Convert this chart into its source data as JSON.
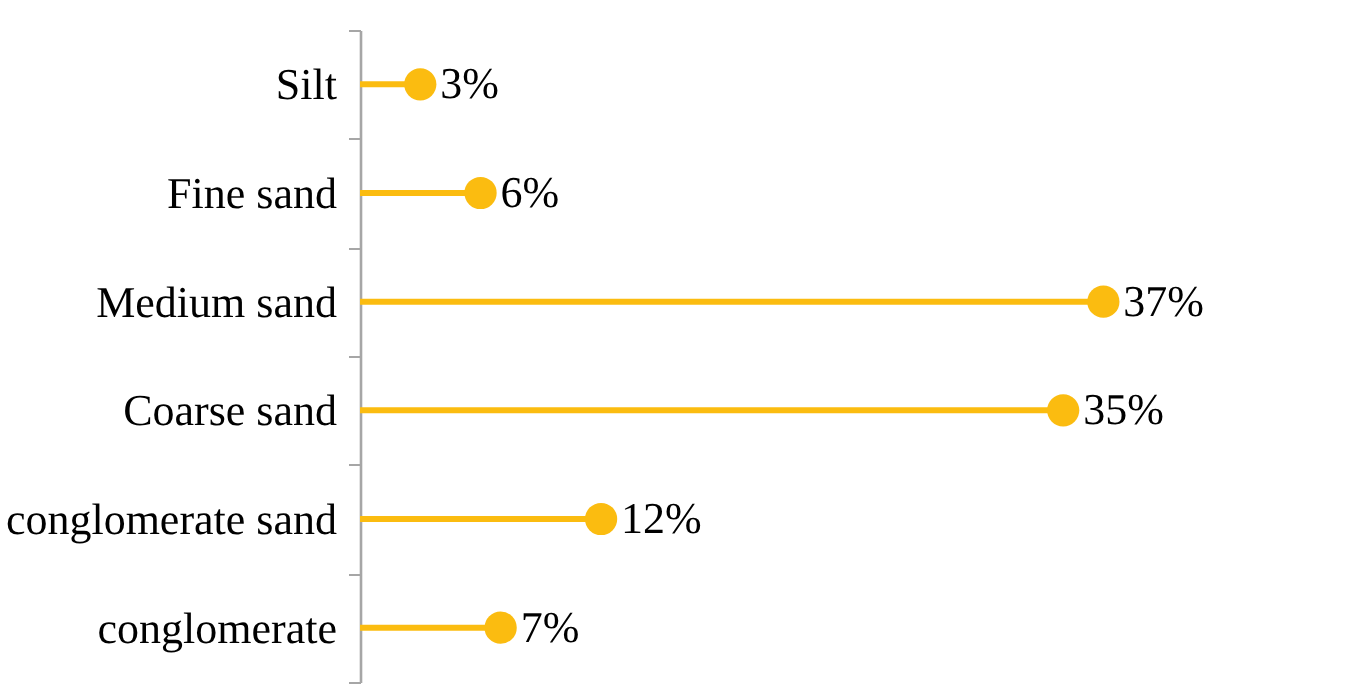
{
  "chart_data": {
    "type": "lollipop",
    "orientation": "horizontal",
    "categories": [
      "Silt",
      "Fine sand",
      "Medium sand",
      "Coarse sand",
      "conglomerate sand",
      "conglomerate"
    ],
    "values": [
      3,
      6,
      37,
      35,
      12,
      7
    ],
    "value_labels": [
      "3%",
      "6%",
      "37%",
      "35%",
      "12%",
      "7%"
    ],
    "color": "#fbbc10"
  }
}
